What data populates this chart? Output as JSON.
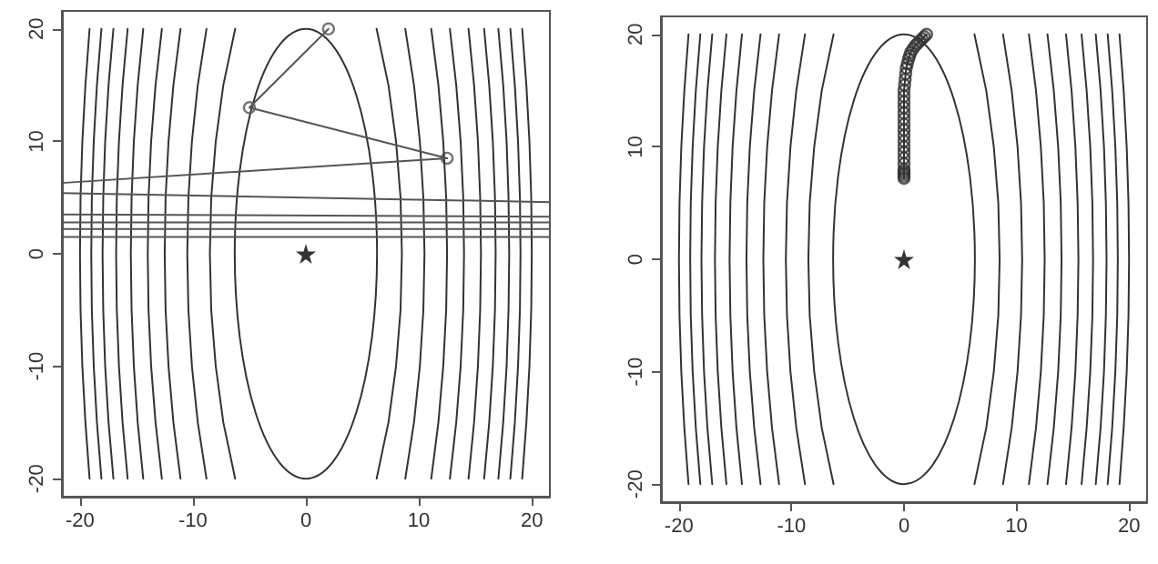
{
  "chart_data": [
    {
      "type": "line",
      "xlim": [
        -21.6,
        21.6
      ],
      "ylim": [
        -21.6,
        21.6
      ],
      "xticks": [
        -20,
        -10,
        0,
        10,
        20
      ],
      "yticks": [
        -20,
        -10,
        0,
        10,
        20
      ],
      "series": [
        {
          "type": "line",
          "marker": "none",
          "color": "#333333",
          "x": [
            -6.26,
            -7.31,
            -7.98,
            -8.38,
            -8.5,
            -8.38,
            -7.98,
            -7.31,
            -6.26
          ],
          "values": [
            -20,
            -15,
            -10,
            -5,
            0,
            5,
            10,
            15,
            20
          ]
        },
        {
          "type": "line",
          "marker": "none",
          "color": "#333333",
          "x": [
            -8.8,
            -9.57,
            -10.09,
            -10.4,
            -10.5,
            -10.4,
            -10.09,
            -9.57,
            -8.8
          ],
          "values": [
            -20,
            -15,
            -10,
            -5,
            0,
            5,
            10,
            15,
            20
          ]
        },
        {
          "type": "line",
          "marker": "none",
          "color": "#333333",
          "x": [
            -11.1,
            -11.73,
            -12.16,
            -12.42,
            -12.5,
            -12.42,
            -12.16,
            -11.73,
            -11.1
          ],
          "values": [
            -20,
            -15,
            -10,
            -5,
            0,
            5,
            10,
            15,
            20
          ]
        },
        {
          "type": "line",
          "marker": "none",
          "color": "#333333",
          "x": [
            -12.75,
            -13.31,
            -13.7,
            -13.93,
            -14,
            -13.93,
            -13.7,
            -13.31,
            -12.75
          ],
          "values": [
            -20,
            -15,
            -10,
            -5,
            0,
            5,
            10,
            15,
            20
          ]
        },
        {
          "type": "line",
          "marker": "none",
          "color": "#333333",
          "x": [
            -14.4,
            -14.89,
            -15.23,
            -15.43,
            -15.5,
            -15.43,
            -15.23,
            -14.89,
            -14.4
          ],
          "values": [
            -20,
            -15,
            -10,
            -5,
            0,
            5,
            10,
            15,
            20
          ]
        },
        {
          "type": "line",
          "marker": "none",
          "color": "#333333",
          "x": [
            -15.78,
            -16.23,
            -16.55,
            -16.74,
            -16.8,
            -16.74,
            -16.55,
            -16.23,
            -15.78
          ],
          "values": [
            -20,
            -15,
            -10,
            -5,
            0,
            5,
            10,
            15,
            20
          ]
        },
        {
          "type": "line",
          "marker": "none",
          "color": "#333333",
          "x": [
            -17.04,
            -17.47,
            -17.77,
            -17.94,
            -18,
            -17.94,
            -17.77,
            -17.47,
            -17.04
          ],
          "values": [
            -20,
            -15,
            -10,
            -5,
            0,
            5,
            10,
            15,
            20
          ]
        },
        {
          "type": "line",
          "marker": "none",
          "color": "#333333",
          "x": [
            -18.1,
            -18.5,
            -18.78,
            -18.95,
            -19,
            -18.95,
            -18.78,
            -18.5,
            -18.1
          ],
          "values": [
            -20,
            -15,
            -10,
            -5,
            0,
            5,
            10,
            15,
            20
          ]
        },
        {
          "type": "line",
          "marker": "none",
          "color": "#333333",
          "x": [
            -19.15,
            -19.52,
            -19.79,
            -19.95,
            -20,
            -19.95,
            -19.79,
            -19.52,
            -19.15
          ],
          "values": [
            -20,
            -15,
            -10,
            -5,
            0,
            5,
            10,
            15,
            20
          ]
        },
        {
          "type": "line",
          "marker": "none",
          "color": "#333333",
          "x": [
            6.26,
            7.31,
            7.98,
            8.38,
            8.5,
            8.38,
            7.98,
            7.31,
            6.26
          ],
          "values": [
            -20,
            -15,
            -10,
            -5,
            0,
            5,
            10,
            15,
            20
          ]
        },
        {
          "type": "line",
          "marker": "none",
          "color": "#333333",
          "x": [
            8.8,
            9.57,
            10.09,
            10.4,
            10.5,
            10.4,
            10.09,
            9.57,
            8.8
          ],
          "values": [
            -20,
            -15,
            -10,
            -5,
            0,
            5,
            10,
            15,
            20
          ]
        },
        {
          "type": "line",
          "marker": "none",
          "color": "#333333",
          "x": [
            11.1,
            11.73,
            12.16,
            12.42,
            12.5,
            12.42,
            12.16,
            11.73,
            11.1
          ],
          "values": [
            -20,
            -15,
            -10,
            -5,
            0,
            5,
            10,
            15,
            20
          ]
        },
        {
          "type": "line",
          "marker": "none",
          "color": "#333333",
          "x": [
            12.75,
            13.31,
            13.7,
            13.93,
            14,
            13.93,
            13.7,
            13.31,
            12.75
          ],
          "values": [
            -20,
            -15,
            -10,
            -5,
            0,
            5,
            10,
            15,
            20
          ]
        },
        {
          "type": "line",
          "marker": "none",
          "color": "#333333",
          "x": [
            14.4,
            14.89,
            15.23,
            15.43,
            15.5,
            15.43,
            15.23,
            14.89,
            14.4
          ],
          "values": [
            -20,
            -15,
            -10,
            -5,
            0,
            5,
            10,
            15,
            20
          ]
        },
        {
          "type": "line",
          "marker": "none",
          "color": "#333333",
          "x": [
            15.78,
            16.23,
            16.55,
            16.74,
            16.8,
            16.74,
            16.55,
            16.23,
            15.78
          ],
          "values": [
            -20,
            -15,
            -10,
            -5,
            0,
            5,
            10,
            15,
            20
          ]
        },
        {
          "type": "line",
          "marker": "none",
          "color": "#333333",
          "x": [
            17.04,
            17.47,
            17.77,
            17.94,
            18,
            17.94,
            17.77,
            17.47,
            17.04
          ],
          "values": [
            -20,
            -15,
            -10,
            -5,
            0,
            5,
            10,
            15,
            20
          ]
        },
        {
          "type": "line",
          "marker": "none",
          "color": "#333333",
          "x": [
            18.1,
            18.5,
            18.78,
            18.95,
            19,
            18.95,
            18.78,
            18.5,
            18.1
          ],
          "values": [
            -20,
            -15,
            -10,
            -5,
            0,
            5,
            10,
            15,
            20
          ]
        },
        {
          "type": "line",
          "marker": "none",
          "color": "#333333",
          "x": [
            19.15,
            19.52,
            19.79,
            19.95,
            20,
            19.95,
            19.79,
            19.52,
            19.15
          ],
          "values": [
            -20,
            -15,
            -10,
            -5,
            0,
            5,
            10,
            15,
            20
          ]
        },
        {
          "type": "line",
          "marker": "circle",
          "color": "#555555",
          "x": [
            2,
            -5,
            12.5
          ],
          "values": [
            20,
            13,
            8.5
          ]
        },
        {
          "type": "line",
          "marker": "none",
          "color": "#555555",
          "x": [
            12.5,
            -21.6
          ],
          "values": [
            8.5,
            6.3
          ]
        },
        {
          "type": "line",
          "marker": "none",
          "color": "#555555",
          "x": [
            -21.6,
            21.6
          ],
          "values": [
            5.4,
            4.6
          ]
        },
        {
          "type": "line",
          "marker": "none",
          "color": "#555555",
          "x": [
            -21.6,
            21.6
          ],
          "values": [
            3.5,
            3.3
          ]
        },
        {
          "type": "line",
          "marker": "none",
          "color": "#555555",
          "x": [
            -21.6,
            21.6
          ],
          "values": [
            2.8,
            2.8
          ]
        },
        {
          "type": "line",
          "marker": "none",
          "color": "#555555",
          "x": [
            -21.6,
            21.6
          ],
          "values": [
            2.2,
            2.2
          ]
        },
        {
          "type": "line",
          "marker": "none",
          "color": "#555555",
          "x": [
            -21.6,
            21.6
          ],
          "values": [
            1.5,
            1.5
          ]
        },
        {
          "type": "scatter",
          "marker": "star",
          "color": "#000000",
          "x": [
            0
          ],
          "values": [
            0
          ]
        }
      ]
    },
    {
      "type": "line",
      "xlim": [
        -21.6,
        21.6
      ],
      "ylim": [
        -21.6,
        21.6
      ],
      "xticks": [
        -20,
        -10,
        0,
        10,
        20
      ],
      "yticks": [
        -20,
        -10,
        0,
        10,
        20
      ],
      "series": [
        {
          "type": "line",
          "marker": "none",
          "color": "#333333",
          "x": [
            -6.26,
            -7.31,
            -7.98,
            -8.38,
            -8.5,
            -8.38,
            -7.98,
            -7.31,
            -6.26
          ],
          "values": [
            -20,
            -15,
            -10,
            -5,
            0,
            5,
            10,
            15,
            20
          ]
        },
        {
          "type": "line",
          "marker": "none",
          "color": "#333333",
          "x": [
            -8.8,
            -9.57,
            -10.09,
            -10.4,
            -10.5,
            -10.4,
            -10.09,
            -9.57,
            -8.8
          ],
          "values": [
            -20,
            -15,
            -10,
            -5,
            0,
            5,
            10,
            15,
            20
          ]
        },
        {
          "type": "line",
          "marker": "none",
          "color": "#333333",
          "x": [
            -11.1,
            -11.73,
            -12.16,
            -12.42,
            -12.5,
            -12.42,
            -12.16,
            -11.73,
            -11.1
          ],
          "values": [
            -20,
            -15,
            -10,
            -5,
            0,
            5,
            10,
            15,
            20
          ]
        },
        {
          "type": "line",
          "marker": "none",
          "color": "#333333",
          "x": [
            -12.75,
            -13.31,
            -13.7,
            -13.93,
            -14,
            -13.93,
            -13.7,
            -13.31,
            -12.75
          ],
          "values": [
            -20,
            -15,
            -10,
            -5,
            0,
            5,
            10,
            15,
            20
          ]
        },
        {
          "type": "line",
          "marker": "none",
          "color": "#333333",
          "x": [
            -14.4,
            -14.89,
            -15.23,
            -15.43,
            -15.5,
            -15.43,
            -15.23,
            -14.89,
            -14.4
          ],
          "values": [
            -20,
            -15,
            -10,
            -5,
            0,
            5,
            10,
            15,
            20
          ]
        },
        {
          "type": "line",
          "marker": "none",
          "color": "#333333",
          "x": [
            -15.78,
            -16.23,
            -16.55,
            -16.74,
            -16.8,
            -16.74,
            -16.55,
            -16.23,
            -15.78
          ],
          "values": [
            -20,
            -15,
            -10,
            -5,
            0,
            5,
            10,
            15,
            20
          ]
        },
        {
          "type": "line",
          "marker": "none",
          "color": "#333333",
          "x": [
            -17.04,
            -17.47,
            -17.77,
            -17.94,
            -18,
            -17.94,
            -17.77,
            -17.47,
            -17.04
          ],
          "values": [
            -20,
            -15,
            -10,
            -5,
            0,
            5,
            10,
            15,
            20
          ]
        },
        {
          "type": "line",
          "marker": "none",
          "color": "#333333",
          "x": [
            -18.1,
            -18.5,
            -18.78,
            -18.95,
            -19,
            -18.95,
            -18.78,
            -18.5,
            -18.1
          ],
          "values": [
            -20,
            -15,
            -10,
            -5,
            0,
            5,
            10,
            15,
            20
          ]
        },
        {
          "type": "line",
          "marker": "none",
          "color": "#333333",
          "x": [
            -19.15,
            -19.52,
            -19.79,
            -19.95,
            -20,
            -19.95,
            -19.79,
            -19.52,
            -19.15
          ],
          "values": [
            -20,
            -15,
            -10,
            -5,
            0,
            5,
            10,
            15,
            20
          ]
        },
        {
          "type": "line",
          "marker": "none",
          "color": "#333333",
          "x": [
            6.26,
            7.31,
            7.98,
            8.38,
            8.5,
            8.38,
            7.98,
            7.31,
            6.26
          ],
          "values": [
            -20,
            -15,
            -10,
            -5,
            0,
            5,
            10,
            15,
            20
          ]
        },
        {
          "type": "line",
          "marker": "none",
          "color": "#333333",
          "x": [
            8.8,
            9.57,
            10.09,
            10.4,
            10.5,
            10.4,
            10.09,
            9.57,
            8.8
          ],
          "values": [
            -20,
            -15,
            -10,
            -5,
            0,
            5,
            10,
            15,
            20
          ]
        },
        {
          "type": "line",
          "marker": "none",
          "color": "#333333",
          "x": [
            11.1,
            11.73,
            12.16,
            12.42,
            12.5,
            12.42,
            12.16,
            11.73,
            11.1
          ],
          "values": [
            -20,
            -15,
            -10,
            -5,
            0,
            5,
            10,
            15,
            20
          ]
        },
        {
          "type": "line",
          "marker": "none",
          "color": "#333333",
          "x": [
            12.75,
            13.31,
            13.7,
            13.93,
            14,
            13.93,
            13.7,
            13.31,
            12.75
          ],
          "values": [
            -20,
            -15,
            -10,
            -5,
            0,
            5,
            10,
            15,
            20
          ]
        },
        {
          "type": "line",
          "marker": "none",
          "color": "#333333",
          "x": [
            14.4,
            14.89,
            15.23,
            15.43,
            15.5,
            15.43,
            15.23,
            14.89,
            14.4
          ],
          "values": [
            -20,
            -15,
            -10,
            -5,
            0,
            5,
            10,
            15,
            20
          ]
        },
        {
          "type": "line",
          "marker": "none",
          "color": "#333333",
          "x": [
            15.78,
            16.23,
            16.55,
            16.74,
            16.8,
            16.74,
            16.55,
            16.23,
            15.78
          ],
          "values": [
            -20,
            -15,
            -10,
            -5,
            0,
            5,
            10,
            15,
            20
          ]
        },
        {
          "type": "line",
          "marker": "none",
          "color": "#333333",
          "x": [
            17.04,
            17.47,
            17.77,
            17.94,
            18,
            17.94,
            17.77,
            17.47,
            17.04
          ],
          "values": [
            -20,
            -15,
            -10,
            -5,
            0,
            5,
            10,
            15,
            20
          ]
        },
        {
          "type": "line",
          "marker": "none",
          "color": "#333333",
          "x": [
            18.1,
            18.5,
            18.78,
            18.95,
            19,
            18.95,
            18.78,
            18.5,
            18.1
          ],
          "values": [
            -20,
            -15,
            -10,
            -5,
            0,
            5,
            10,
            15,
            20
          ]
        },
        {
          "type": "line",
          "marker": "none",
          "color": "#333333",
          "x": [
            19.15,
            19.52,
            19.79,
            19.95,
            20,
            19.95,
            19.79,
            19.52,
            19.15
          ],
          "values": [
            -20,
            -15,
            -10,
            -5,
            0,
            5,
            10,
            15,
            20
          ]
        },
        {
          "type": "line",
          "marker": "circle",
          "color": "#333333",
          "x": [
            2,
            1.8,
            1.6,
            1.4,
            1.2,
            1,
            0.8,
            0.6,
            0.5,
            0.4,
            0.3,
            0.2,
            0.15,
            0.1,
            0.05,
            0,
            0,
            0,
            0,
            0,
            0,
            0,
            0,
            0,
            0,
            0,
            0,
            0,
            0,
            0,
            0,
            0,
            0,
            0
          ],
          "values": [
            20,
            19.8,
            19.6,
            19.4,
            19.2,
            19,
            18.7,
            18.4,
            18.1,
            17.8,
            17.4,
            17,
            16.5,
            16,
            15.5,
            15,
            14.5,
            14,
            13.5,
            13,
            12.5,
            12,
            11.5,
            11,
            10.5,
            10,
            9.5,
            9,
            8.5,
            8,
            7.8,
            7.6,
            7.4,
            7.2
          ]
        },
        {
          "type": "scatter",
          "marker": "star",
          "color": "#000000",
          "x": [
            0
          ],
          "values": [
            0
          ]
        }
      ]
    }
  ]
}
